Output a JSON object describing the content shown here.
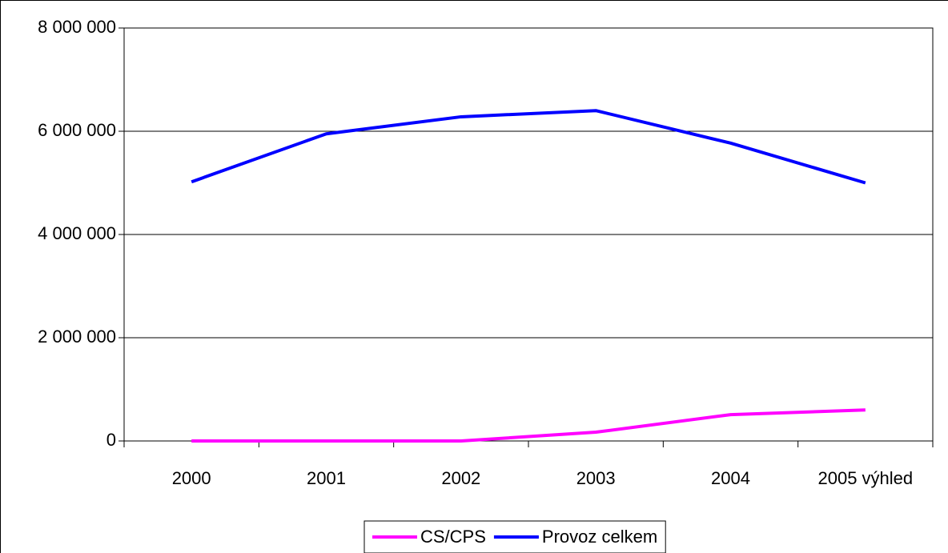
{
  "chart_data": {
    "type": "line",
    "categories": [
      "2000",
      "2001",
      "2002",
      "2003",
      "2004",
      "2005 výhled"
    ],
    "series": [
      {
        "name": "CS/CPS",
        "color": "#ff00ff",
        "values": [
          0,
          0,
          0,
          170000,
          510000,
          600000
        ]
      },
      {
        "name": "Provoz celkem",
        "color": "#0000ff",
        "values": [
          5020000,
          5950000,
          6280000,
          6400000,
          5770000,
          5000000
        ]
      }
    ],
    "ylim": [
      0,
      8000000
    ],
    "yticks": [
      0,
      {
        "value": 2000000,
        "label": "2 000 000"
      },
      {
        "value": 4000000,
        "label": "4 000 000"
      },
      {
        "value": 6000000,
        "label": "6 000 000"
      },
      {
        "value": 8000000,
        "label": "8 000 000"
      }
    ],
    "grid": true,
    "legend": "bottom"
  }
}
